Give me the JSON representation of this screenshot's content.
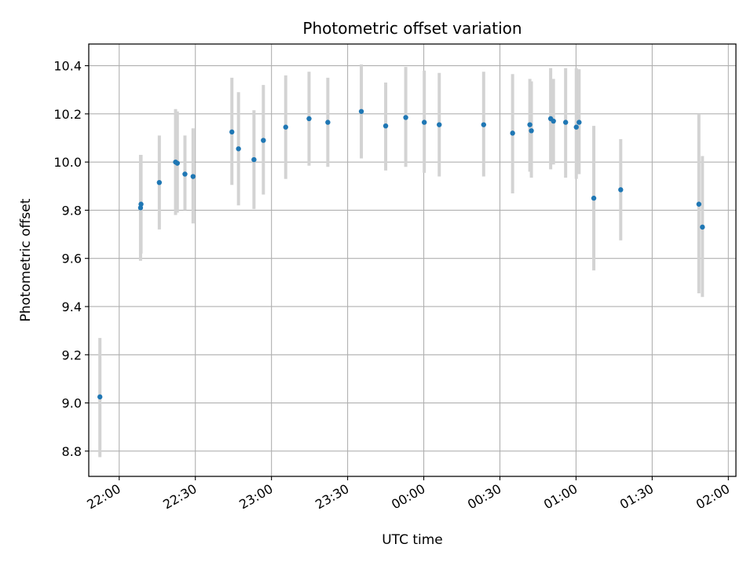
{
  "chart_data": {
    "type": "scatter",
    "title": "Photometric offset variation",
    "xlabel": "UTC time",
    "ylabel": "Photometric offset",
    "xlim": [
      "2000-01-01T21:48:00",
      "2000-01-02T02:03:00"
    ],
    "ylim": [
      8.695,
      10.49
    ],
    "grid": true,
    "colors": {
      "point": "#1f77b4",
      "errorbar": "#d3d3d3",
      "grid": "#b0b0b0"
    },
    "x_ticks": [
      {
        "t": "2000-01-01T22:00:00",
        "label": "22:00"
      },
      {
        "t": "2000-01-01T22:30:00",
        "label": "22:30"
      },
      {
        "t": "2000-01-01T23:00:00",
        "label": "23:00"
      },
      {
        "t": "2000-01-01T23:30:00",
        "label": "23:30"
      },
      {
        "t": "2000-01-02T00:00:00",
        "label": "00:00"
      },
      {
        "t": "2000-01-02T00:30:00",
        "label": "00:30"
      },
      {
        "t": "2000-01-02T01:00:00",
        "label": "01:00"
      },
      {
        "t": "2000-01-02T01:30:00",
        "label": "01:30"
      },
      {
        "t": "2000-01-02T02:00:00",
        "label": "02:00"
      }
    ],
    "y_ticks": [
      {
        "v": 8.8,
        "label": "8.8"
      },
      {
        "v": 9.0,
        "label": "9.0"
      },
      {
        "v": 9.2,
        "label": "9.2"
      },
      {
        "v": 9.4,
        "label": "9.4"
      },
      {
        "v": 9.6,
        "label": "9.6"
      },
      {
        "v": 9.8,
        "label": "9.8"
      },
      {
        "v": 10.0,
        "label": "10.0"
      },
      {
        "v": 10.2,
        "label": "10.2"
      },
      {
        "v": 10.4,
        "label": "10.4"
      }
    ],
    "points": [
      {
        "t": "2000-01-01T21:52:24",
        "y": 9.025,
        "lo": 8.775,
        "hi": 9.27
      },
      {
        "t": "2000-01-01T22:08:24",
        "y": 9.81,
        "lo": 9.59,
        "hi": 10.03
      },
      {
        "t": "2000-01-01T22:08:36",
        "y": 9.825,
        "lo": 9.62,
        "hi": 10.03
      },
      {
        "t": "2000-01-01T22:15:48",
        "y": 9.915,
        "lo": 9.72,
        "hi": 10.11
      },
      {
        "t": "2000-01-01T22:22:12",
        "y": 10.0,
        "lo": 9.78,
        "hi": 10.22
      },
      {
        "t": "2000-01-01T22:22:54",
        "y": 9.995,
        "lo": 9.79,
        "hi": 10.21
      },
      {
        "t": "2000-01-01T22:25:54",
        "y": 9.95,
        "lo": 9.8,
        "hi": 10.11
      },
      {
        "t": "2000-01-01T22:29:06",
        "y": 9.94,
        "lo": 9.745,
        "hi": 10.14
      },
      {
        "t": "2000-01-01T22:44:24",
        "y": 10.125,
        "lo": 9.905,
        "hi": 10.35
      },
      {
        "t": "2000-01-01T22:47:00",
        "y": 10.055,
        "lo": 9.82,
        "hi": 10.29
      },
      {
        "t": "2000-01-01T22:53:06",
        "y": 10.01,
        "lo": 9.805,
        "hi": 10.215
      },
      {
        "t": "2000-01-01T22:56:48",
        "y": 10.09,
        "lo": 9.865,
        "hi": 10.32
      },
      {
        "t": "2000-01-01T23:05:36",
        "y": 10.145,
        "lo": 9.93,
        "hi": 10.36
      },
      {
        "t": "2000-01-01T23:14:48",
        "y": 10.18,
        "lo": 9.985,
        "hi": 10.375
      },
      {
        "t": "2000-01-01T23:22:12",
        "y": 10.165,
        "lo": 9.98,
        "hi": 10.35
      },
      {
        "t": "2000-01-01T23:35:24",
        "y": 10.21,
        "lo": 10.015,
        "hi": 10.405
      },
      {
        "t": "2000-01-01T23:45:00",
        "y": 10.15,
        "lo": 9.965,
        "hi": 10.33
      },
      {
        "t": "2000-01-01T23:52:54",
        "y": 10.185,
        "lo": 9.98,
        "hi": 10.395
      },
      {
        "t": "2000-01-02T00:00:12",
        "y": 10.165,
        "lo": 9.955,
        "hi": 10.38
      },
      {
        "t": "2000-01-02T00:06:06",
        "y": 10.155,
        "lo": 9.94,
        "hi": 10.37
      },
      {
        "t": "2000-01-02T00:23:36",
        "y": 10.155,
        "lo": 9.94,
        "hi": 10.375
      },
      {
        "t": "2000-01-02T00:35:00",
        "y": 10.12,
        "lo": 9.87,
        "hi": 10.365
      },
      {
        "t": "2000-01-02T00:41:48",
        "y": 10.155,
        "lo": 9.96,
        "hi": 10.345
      },
      {
        "t": "2000-01-02T00:42:24",
        "y": 10.13,
        "lo": 9.935,
        "hi": 10.335
      },
      {
        "t": "2000-01-02T00:50:00",
        "y": 10.18,
        "lo": 9.97,
        "hi": 10.39
      },
      {
        "t": "2000-01-02T00:51:06",
        "y": 10.17,
        "lo": 9.99,
        "hi": 10.345
      },
      {
        "t": "2000-01-02T00:55:54",
        "y": 10.165,
        "lo": 9.935,
        "hi": 10.39
      },
      {
        "t": "2000-01-02T01:00:06",
        "y": 10.145,
        "lo": 9.93,
        "hi": 10.39
      },
      {
        "t": "2000-01-02T01:01:12",
        "y": 10.165,
        "lo": 9.95,
        "hi": 10.385
      },
      {
        "t": "2000-01-02T01:07:00",
        "y": 9.85,
        "lo": 9.55,
        "hi": 10.15
      },
      {
        "t": "2000-01-02T01:17:36",
        "y": 9.885,
        "lo": 9.675,
        "hi": 10.095
      },
      {
        "t": "2000-01-02T01:48:24",
        "y": 9.825,
        "lo": 9.455,
        "hi": 10.2
      },
      {
        "t": "2000-01-02T01:49:48",
        "y": 9.73,
        "lo": 9.44,
        "hi": 10.025
      }
    ]
  }
}
